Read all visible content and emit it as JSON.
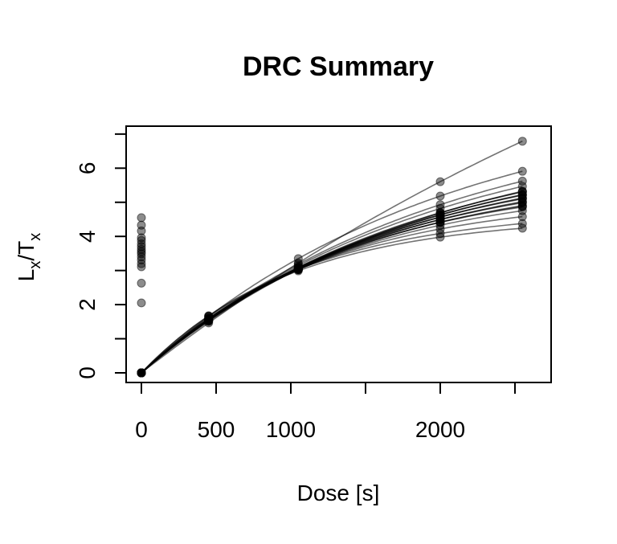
{
  "chart_data": {
    "type": "scatter",
    "title": "DRC Summary",
    "xlabel": "Dose [s]",
    "ylabel": {
      "main": "L",
      "sub1": "x",
      "sep": "/T",
      "sub2": "x"
    },
    "xlim": [
      -100,
      2650
    ],
    "ylim": [
      -0.25,
      7.25
    ],
    "x_ticks": [
      0,
      500,
      1000,
      1500,
      2000,
      2500
    ],
    "x_tick_labels": [
      "0",
      "500",
      "1000",
      "",
      "2000",
      ""
    ],
    "y_ticks": [
      0,
      1,
      2,
      3,
      4,
      5,
      6,
      7
    ],
    "y_tick_labels": [
      "0",
      "",
      "2",
      "",
      "4",
      "",
      "6",
      ""
    ],
    "grid": false,
    "doses": [
      0,
      450,
      1050,
      2000,
      2550
    ],
    "natural_signals": [
      4.55,
      4.33,
      4.16,
      3.96,
      3.88,
      3.78,
      3.7,
      3.62,
      3.55,
      3.49,
      3.4,
      3.31,
      3.2,
      3.11,
      2.63,
      2.05
    ],
    "fit_model": "y = a * (1 - exp(-dose / b))",
    "curves": [
      {
        "a": 17.0,
        "b": 5000
      },
      {
        "a": 8.2,
        "b": 2000
      },
      {
        "a": 7.8,
        "b": 2000
      },
      {
        "a": 7.4,
        "b": 1900
      },
      {
        "a": 7.3,
        "b": 1950
      },
      {
        "a": 7.1,
        "b": 1850
      },
      {
        "a": 7.0,
        "b": 1800
      },
      {
        "a": 6.9,
        "b": 1800
      },
      {
        "a": 6.8,
        "b": 1750
      },
      {
        "a": 6.7,
        "b": 1700
      },
      {
        "a": 6.6,
        "b": 1700
      },
      {
        "a": 6.5,
        "b": 1650
      },
      {
        "a": 6.4,
        "b": 1600
      },
      {
        "a": 6.3,
        "b": 1600
      },
      {
        "a": 6.2,
        "b": 1550
      },
      {
        "a": 6.1,
        "b": 1500
      },
      {
        "a": 6.0,
        "b": 1500
      },
      {
        "a": 5.9,
        "b": 1450
      },
      {
        "a": 5.8,
        "b": 1400
      },
      {
        "a": 5.6,
        "b": 1350
      },
      {
        "a": 5.2,
        "b": 1200
      },
      {
        "a": 4.8,
        "b": 1050
      },
      {
        "a": 4.6,
        "b": 1000
      }
    ],
    "colors": {
      "point_fill": "#000000",
      "point_alpha": 0.45,
      "line": "#000000",
      "line_alpha": 0.55
    }
  }
}
